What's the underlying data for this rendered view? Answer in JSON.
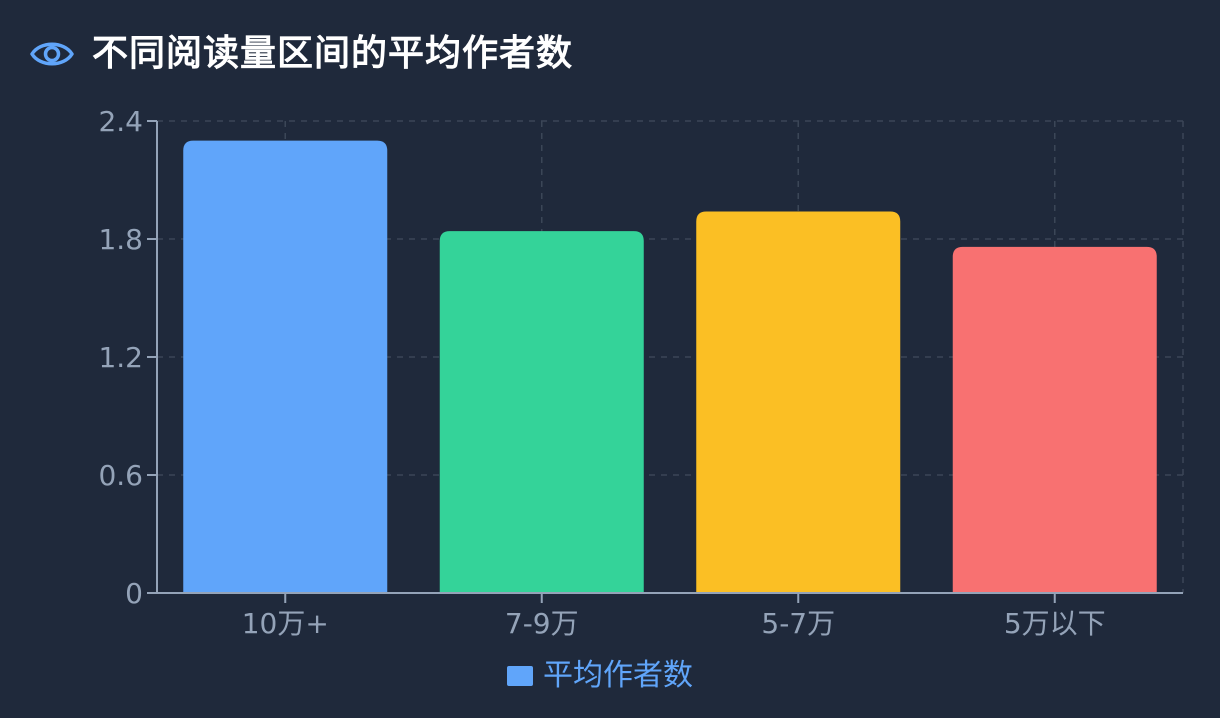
{
  "header": {
    "icon": "eye-icon",
    "title": "不同阅读量区间的平均作者数"
  },
  "colors": {
    "background": "#1f293b",
    "accent": "#60a5fa",
    "grid": "#3b4657",
    "axis": "#94a3b8",
    "text": "#94a3b8"
  },
  "chart_data": {
    "type": "bar",
    "title": "不同阅读量区间的平均作者数",
    "xlabel": "",
    "ylabel": "",
    "categories": [
      "10万+",
      "7-9万",
      "5-7万",
      "5万以下"
    ],
    "series": [
      {
        "name": "平均作者数",
        "values": [
          2.3,
          1.84,
          1.94,
          1.76
        ],
        "colors": [
          "#60a5fa",
          "#34d399",
          "#fbbf24",
          "#f87171"
        ]
      }
    ],
    "ylim": [
      0,
      2.4
    ],
    "yticks": [
      "0",
      "0.6",
      "1.2",
      "1.8",
      "2.4"
    ],
    "grid": true,
    "legend": "bottom-center"
  }
}
